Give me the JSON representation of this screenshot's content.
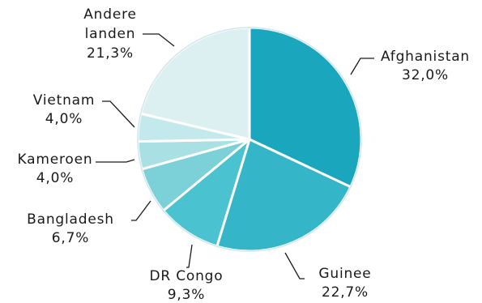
{
  "chart_data": {
    "type": "pie",
    "title": "",
    "slices": [
      {
        "label": "Afghanistan",
        "value_text": "32,0%",
        "value": 32.0,
        "color": "#1aa6bd"
      },
      {
        "label": "Guinee",
        "value_text": "22,7%",
        "value": 22.7,
        "color": "#34b6c8"
      },
      {
        "label": "DR Congo",
        "value_text": "9,3%",
        "value": 9.3,
        "color": "#4ac2cf"
      },
      {
        "label": "Bangladesh",
        "value_text": "6,7%",
        "value": 6.7,
        "color": "#7cd0d8"
      },
      {
        "label": "Kameroen",
        "value_text": "4,0%",
        "value": 4.0,
        "color": "#a9e0e4"
      },
      {
        "label": "Vietnam",
        "value_text": "4,0%",
        "value": 4.0,
        "color": "#c4e9ec"
      },
      {
        "label_lines": [
          "Andere",
          "landen"
        ],
        "value_text": "21,3%",
        "value": 21.3,
        "color": "#dcf0f1"
      }
    ]
  }
}
